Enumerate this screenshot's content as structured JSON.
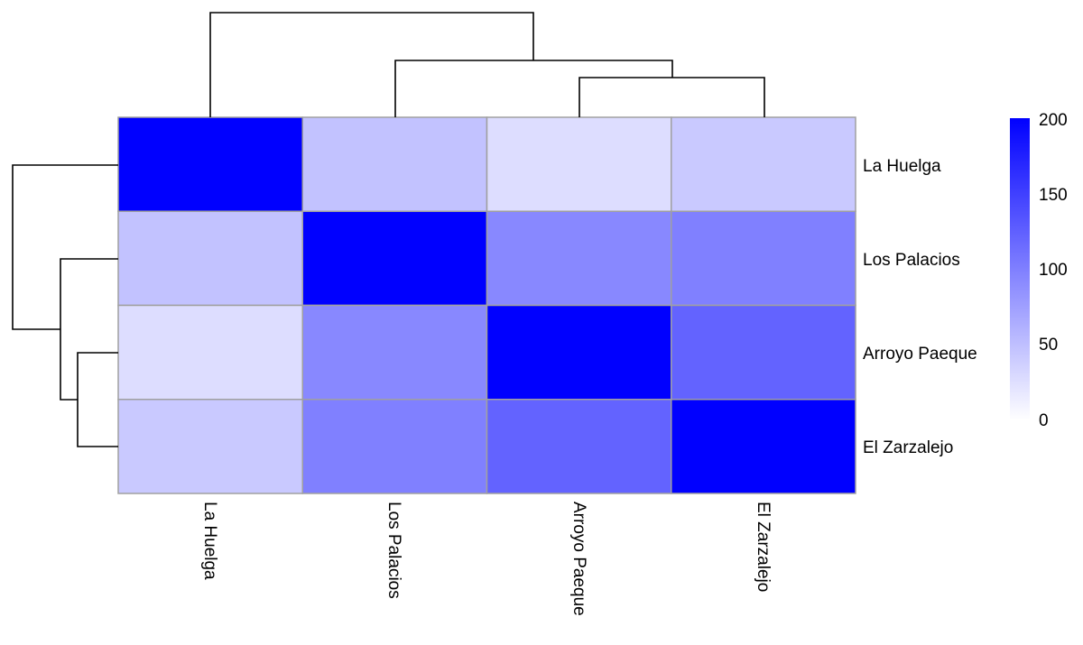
{
  "chart_data": {
    "type": "heatmap",
    "title": "",
    "rows": [
      "La Huelga",
      "Los Palacios",
      "Arroyo Paeque",
      "El Zarzalejo"
    ],
    "columns": [
      "La Huelga",
      "Los Palacios",
      "Arroyo Paeque",
      "El Zarzalejo"
    ],
    "values": [
      [
        200,
        48,
        27,
        42
      ],
      [
        48,
        200,
        93,
        100
      ],
      [
        27,
        93,
        200,
        122
      ],
      [
        42,
        100,
        122,
        200
      ]
    ],
    "colorscale": {
      "low": "#ffffff",
      "high": "#0000ff",
      "min": 0,
      "max": 200
    },
    "legend": {
      "ticks": [
        "200",
        "150",
        "100",
        "50",
        "0"
      ],
      "position": "right"
    },
    "row_dendrogram": "La Huelga | (Los Palacios | (Arroyo Paeque, El Zarzalejo))",
    "column_dendrogram": "La Huelga | (Los Palacios | (Arroyo Paeque, El Zarzalejo))",
    "grid_border_color": "#a0a0a0"
  },
  "labels": {
    "rows": [
      "La Huelga",
      "Los Palacios",
      "Arroyo Paeque",
      "El Zarzalejo"
    ],
    "cols": [
      "La Huelga",
      "Los Palacios",
      "Arroyo Paeque",
      "El Zarzalejo"
    ],
    "ticks": [
      "200",
      "150",
      "100",
      "50",
      "0"
    ]
  }
}
